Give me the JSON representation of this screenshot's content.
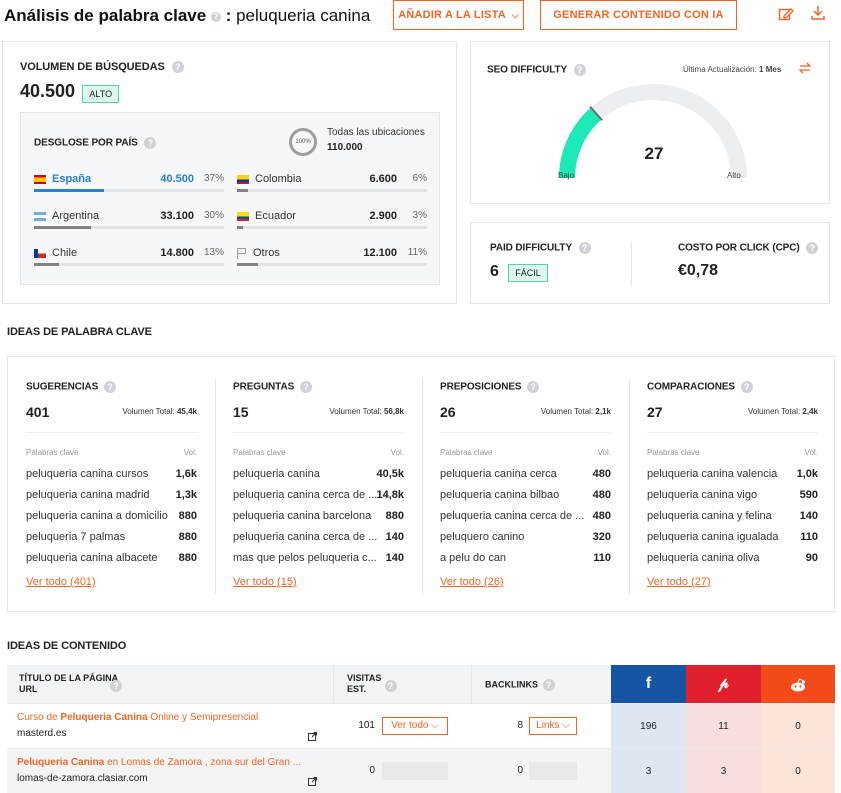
{
  "header": {
    "title": "Análisis de palabra clave",
    "colon": ":",
    "keyword": "peluqueria canina",
    "add_list_label": "AÑADIR A LA LISTA",
    "generate_label": "GENERAR CONTENIDO CON IA"
  },
  "volume": {
    "label": "VOLUMEN DE BÚSQUEDAS",
    "value": "40.500",
    "badge": "ALTO"
  },
  "country": {
    "label": "DESGLOSE POR PAÍS",
    "circle_text": "100%",
    "all_label": "Todas las ubicaciones",
    "all_value": "110.000",
    "rows": [
      {
        "name": "España",
        "value": "40.500",
        "pct": "37%",
        "share": 0.37
      },
      {
        "name": "Colombia",
        "value": "6.600",
        "pct": "6%",
        "share": 0.06
      },
      {
        "name": "Argentina",
        "value": "33.100",
        "pct": "30%",
        "share": 0.3
      },
      {
        "name": "Ecuador",
        "value": "2.900",
        "pct": "3%",
        "share": 0.03
      },
      {
        "name": "Chile",
        "value": "14.800",
        "pct": "13%",
        "share": 0.13
      },
      {
        "name": "Otros",
        "value": "12.100",
        "pct": "11%",
        "share": 0.11
      }
    ]
  },
  "seo": {
    "label": "SEO DIFFICULTY",
    "updated_label": "Última Actualización:",
    "updated_value": "1 Mes",
    "score": "27",
    "score_fraction": 0.27,
    "low": "Bajo",
    "high": "Alto",
    "accent": "#1de9b6"
  },
  "paid": {
    "label": "PAID DIFFICULTY",
    "value": "6",
    "badge": "FÁCIL"
  },
  "cpc": {
    "label": "COSTO POR CLICK (CPC)",
    "value": "€0,78"
  },
  "ideas": {
    "title": "IDEAS DE PALABRA CLAVE",
    "col_kw": "Palabras clave",
    "col_vol": "Vol.",
    "vol_total_label": "Volumen Total:",
    "columns": [
      {
        "title": "SUGERENCIAS",
        "count": "401",
        "total": "45,4k",
        "see_all": "Ver todo (401)",
        "rows": [
          [
            "peluqueria canina cursos",
            "1,6k"
          ],
          [
            "peluqueria canina madrid",
            "1,3k"
          ],
          [
            "peluqueria canina a domicilio",
            "880"
          ],
          [
            "peluqueria 7 palmas",
            "880"
          ],
          [
            "peluqueria canina albacete",
            "880"
          ]
        ]
      },
      {
        "title": "PREGUNTAS",
        "count": "15",
        "total": "56,8k",
        "see_all": "Ver todo (15)",
        "rows": [
          [
            "peluqueria canina",
            "40,5k"
          ],
          [
            "peluqueria canina cerca de ...",
            "14,8k"
          ],
          [
            "peluqueria canina barcelona",
            "880"
          ],
          [
            "peluqueria canina cerca de ...",
            "140"
          ],
          [
            "mas que pelos peluqueria c...",
            "140"
          ]
        ]
      },
      {
        "title": "PREPOSICIONES",
        "count": "26",
        "total": "2,1k",
        "see_all": "Ver todo (26)",
        "rows": [
          [
            "peluqueria canina cerca",
            "480"
          ],
          [
            "peluqueria canina bilbao",
            "480"
          ],
          [
            "peluqueria canina cerca de ...",
            "480"
          ],
          [
            "peluquero canino",
            "320"
          ],
          [
            "a pelu do can",
            "110"
          ]
        ]
      },
      {
        "title": "COMPARACIONES",
        "count": "27",
        "total": "2,4k",
        "see_all": "Ver todo (27)",
        "rows": [
          [
            "peluqueria canina valencia",
            "1,0k"
          ],
          [
            "peluqueria canina vigo",
            "590"
          ],
          [
            "peluqueria canina y felina",
            "140"
          ],
          [
            "peluqueria canina igualada",
            "110"
          ],
          [
            "peluqueria canina oliva",
            "90"
          ]
        ]
      }
    ]
  },
  "content": {
    "title": "IDEAS DE CONTENIDO",
    "th_title": "TÍTULO DE LA PÁGINA",
    "th_url": "URL",
    "th_visits_1": "VISITAS",
    "th_visits_2": "EST.",
    "th_backlinks": "BACKLINKS",
    "see_all_btn": "Ver todo",
    "links_btn": "Links",
    "rows": [
      {
        "pre": "Curso de ",
        "bold": "Peluqueria Canina",
        "post": " Online y Semipresencial",
        "url": "masterd.es",
        "visits": "101",
        "backlinks": "8",
        "fb": "196",
        "pin": "11",
        "reddit": "0"
      },
      {
        "pre": "",
        "bold": "Peluqueria Canina",
        "post": " en Lomas de Zamora , zona sur del Gran ...",
        "url": "lomas-de-zamora.clasiar.com",
        "visits": "0",
        "backlinks": "0",
        "fb": "3",
        "pin": "3",
        "reddit": "0"
      }
    ]
  }
}
